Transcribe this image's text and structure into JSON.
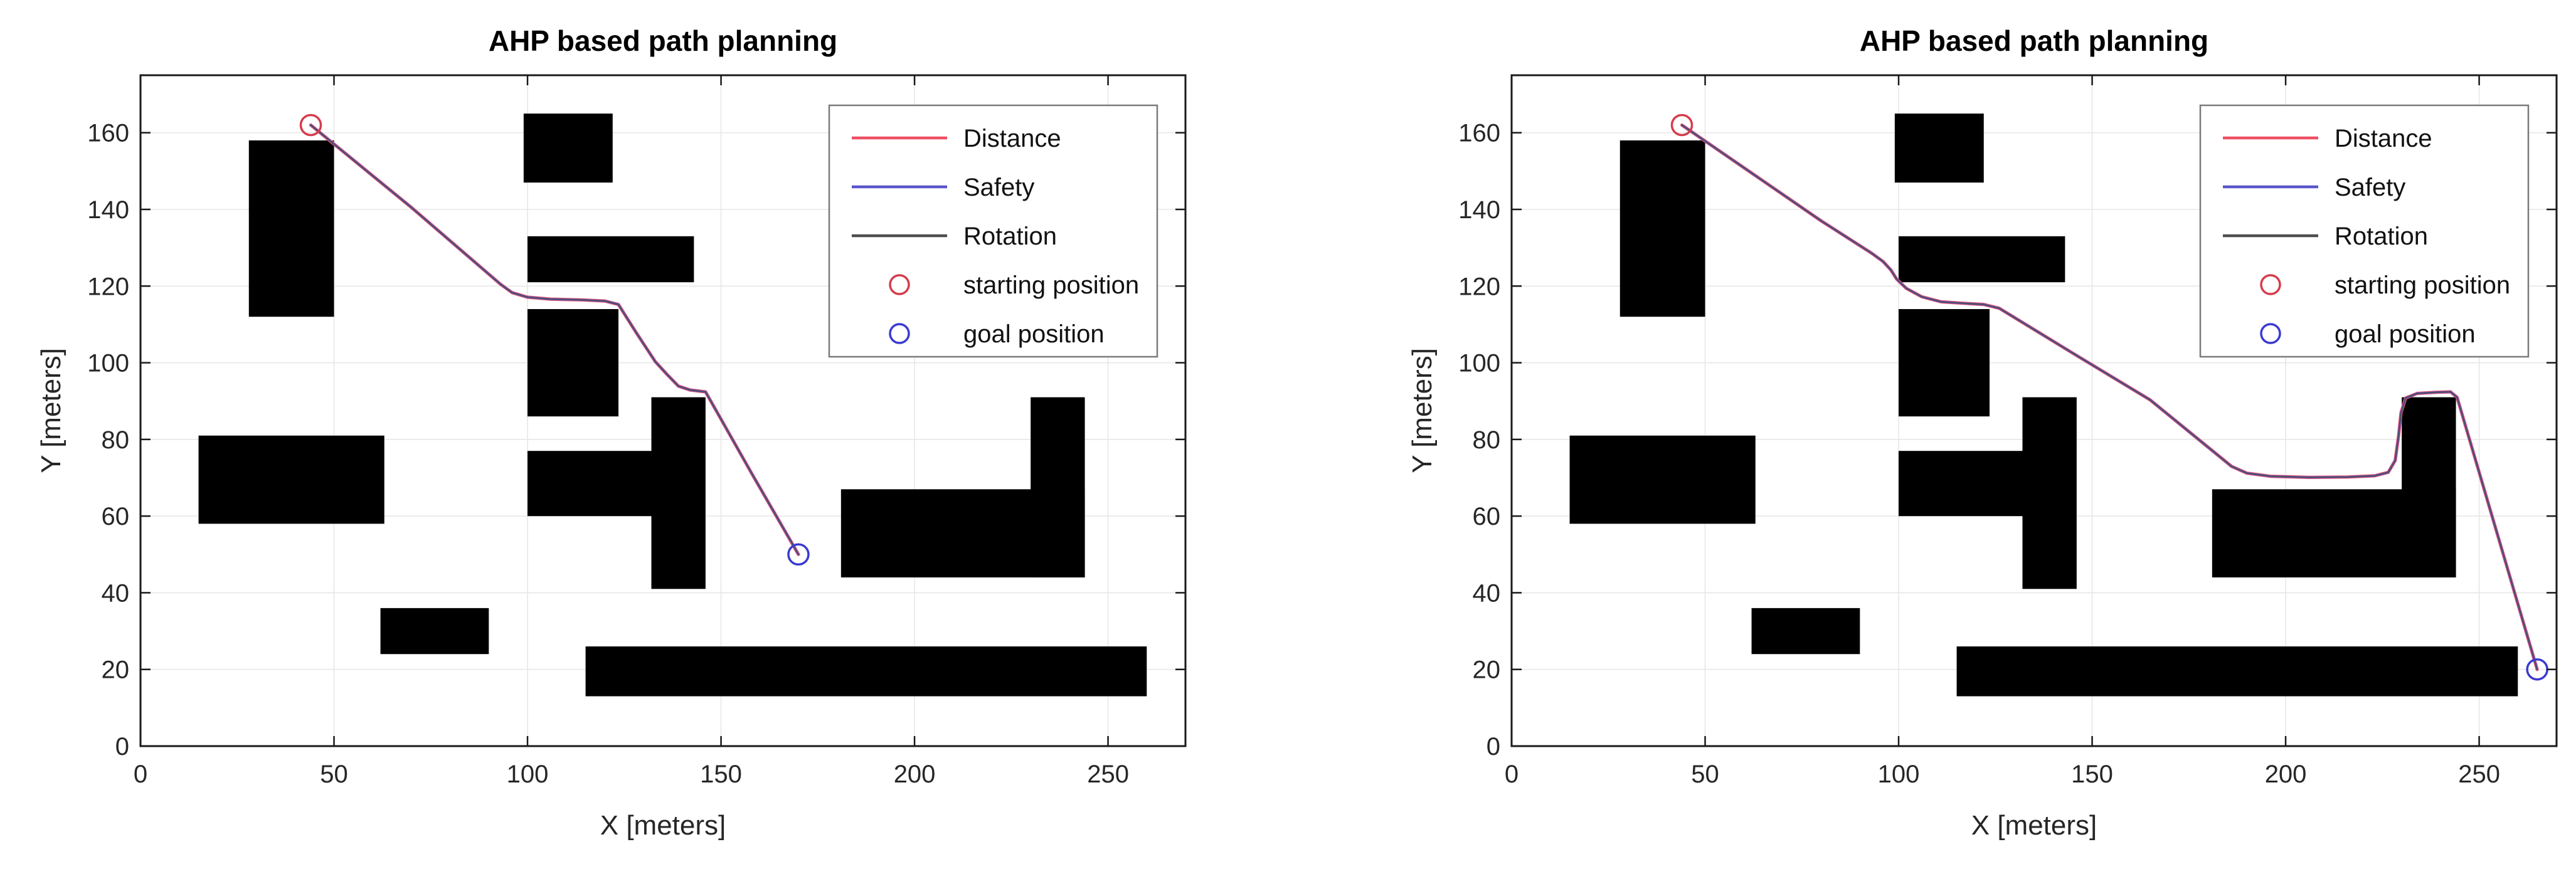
{
  "figure": {
    "background": "#ffffff",
    "colors": {
      "grid": "#e7e7e7",
      "axis": "#1a1a1a",
      "tick_label": "#262626",
      "obstacle": "#000000",
      "legend_border": "#7a7a7a",
      "legend_background": "#ffffff"
    }
  },
  "chart_data": [
    {
      "type": "line",
      "title": "AHP based path planning",
      "xlabel": "X [meters]",
      "ylabel": "Y [meters]",
      "xlim": [
        0,
        270
      ],
      "ylim": [
        0,
        175
      ],
      "xticks": [
        0,
        50,
        100,
        150,
        200,
        250
      ],
      "yticks": [
        0,
        20,
        40,
        60,
        80,
        100,
        120,
        140,
        160
      ],
      "grid": true,
      "legend_position": "upper right",
      "legend": [
        {
          "label": "Distance",
          "marker": "line",
          "color": "#ee4f62"
        },
        {
          "label": "Safety",
          "marker": "line",
          "color": "#5a55cc"
        },
        {
          "label": "Rotation",
          "marker": "line",
          "color": "#4d4d4d"
        },
        {
          "label": "starting position",
          "marker": "circle",
          "color": "#d63c4c"
        },
        {
          "label": "goal position",
          "marker": "circle",
          "color": "#3a3ad2"
        }
      ],
      "obstacles": [
        [
          28,
          112,
          22,
          46
        ],
        [
          99,
          147,
          23,
          18
        ],
        [
          100,
          121,
          43,
          12
        ],
        [
          100,
          86,
          23.5,
          28
        ],
        [
          15,
          58,
          48,
          23
        ],
        [
          100,
          60,
          32,
          17
        ],
        [
          132,
          41,
          14,
          50
        ],
        [
          62,
          24,
          28,
          12
        ],
        [
          115,
          13,
          145,
          13
        ],
        [
          181,
          44,
          63,
          23
        ],
        [
          230,
          44,
          14,
          47
        ]
      ],
      "start": {
        "label": "starting position",
        "x": 44,
        "y": 162,
        "color": "#d63c4c"
      },
      "goal": {
        "label": "goal position",
        "x": 170,
        "y": 50,
        "color": "#3a3ad2"
      },
      "series": [
        {
          "name": "Distance",
          "color": "#ee4f62",
          "points": [
            [
              44,
              162
            ],
            [
              70,
              140.5
            ],
            [
              93,
              120.5
            ],
            [
              96,
              118.3
            ],
            [
              100,
              117.1
            ],
            [
              106,
              116.6
            ],
            [
              114,
              116.4
            ],
            [
              120,
              116.1
            ],
            [
              123.5,
              115.2
            ],
            [
              128,
              108
            ],
            [
              133,
              100.3
            ],
            [
              136,
              97
            ],
            [
              139,
              93.9
            ],
            [
              142,
              92.9
            ],
            [
              146,
              92.4
            ],
            [
              158,
              71
            ],
            [
              170,
              50
            ]
          ]
        },
        {
          "name": "Safety",
          "color": "#5a55cc",
          "points": [
            [
              44,
              162
            ],
            [
              70,
              140.5
            ],
            [
              93,
              120.5
            ],
            [
              96,
              118.3
            ],
            [
              100,
              117.1
            ],
            [
              106,
              116.6
            ],
            [
              114,
              116.4
            ],
            [
              120,
              116.1
            ],
            [
              123.5,
              115.2
            ],
            [
              128,
              108
            ],
            [
              133,
              100.3
            ],
            [
              136,
              97
            ],
            [
              139,
              93.9
            ],
            [
              142,
              92.9
            ],
            [
              146,
              92.4
            ],
            [
              158,
              71
            ],
            [
              170,
              50
            ]
          ]
        },
        {
          "name": "Rotation",
          "color": "#4d4d4d",
          "points": [
            [
              44,
              162
            ],
            [
              70,
              140.5
            ],
            [
              93,
              120.5
            ],
            [
              96,
              118.3
            ],
            [
              100,
              117.1
            ],
            [
              106,
              116.6
            ],
            [
              114,
              116.4
            ],
            [
              120,
              116.1
            ],
            [
              123.5,
              115.2
            ],
            [
              128,
              108
            ],
            [
              133,
              100.3
            ],
            [
              136,
              97
            ],
            [
              139,
              93.9
            ],
            [
              142,
              92.9
            ],
            [
              146,
              92.4
            ],
            [
              158,
              71
            ],
            [
              170,
              50
            ]
          ]
        }
      ]
    },
    {
      "type": "line",
      "title": "AHP based path planning",
      "xlabel": "X [meters]",
      "ylabel": "Y [meters]",
      "xlim": [
        0,
        270
      ],
      "ylim": [
        0,
        175
      ],
      "xticks": [
        0,
        50,
        100,
        150,
        200,
        250
      ],
      "yticks": [
        0,
        20,
        40,
        60,
        80,
        100,
        120,
        140,
        160
      ],
      "grid": true,
      "legend_position": "upper right",
      "legend": [
        {
          "label": "Distance",
          "marker": "line",
          "color": "#ee4f62"
        },
        {
          "label": "Safety",
          "marker": "line",
          "color": "#5a55cc"
        },
        {
          "label": "Rotation",
          "marker": "line",
          "color": "#4d4d4d"
        },
        {
          "label": "starting position",
          "marker": "circle",
          "color": "#d63c4c"
        },
        {
          "label": "goal position",
          "marker": "circle",
          "color": "#3a3ad2"
        }
      ],
      "obstacles": [
        [
          28,
          112,
          22,
          46
        ],
        [
          99,
          147,
          23,
          18
        ],
        [
          100,
          121,
          43,
          12
        ],
        [
          100,
          86,
          23.5,
          28
        ],
        [
          15,
          58,
          48,
          23
        ],
        [
          100,
          60,
          32,
          17
        ],
        [
          132,
          41,
          14,
          50
        ],
        [
          62,
          24,
          28,
          12
        ],
        [
          115,
          13,
          145,
          13
        ],
        [
          181,
          44,
          63,
          23
        ],
        [
          230,
          44,
          14,
          47
        ]
      ],
      "start": {
        "label": "starting position",
        "x": 44,
        "y": 162,
        "color": "#d63c4c"
      },
      "goal": {
        "label": "goal position",
        "x": 265,
        "y": 20,
        "color": "#3a3ad2"
      },
      "series": [
        {
          "name": "Distance",
          "color": "#ee4f62",
          "points": [
            [
              44,
              162
            ],
            [
              80,
              137
            ],
            [
              93,
              128.6
            ],
            [
              96,
              126.4
            ],
            [
              98,
              124.2
            ],
            [
              99.5,
              121.8
            ],
            [
              102,
              119.4
            ],
            [
              106,
              117.2
            ],
            [
              111,
              115.9
            ],
            [
              117,
              115.5
            ],
            [
              122,
              115.2
            ],
            [
              126,
              114.2
            ],
            [
              145,
              102.5
            ],
            [
              165,
              90.3
            ],
            [
              186,
              73
            ],
            [
              190,
              71.2
            ],
            [
              196,
              70.4
            ],
            [
              206,
              70.1
            ],
            [
              216,
              70.2
            ],
            [
              223,
              70.5
            ],
            [
              226.5,
              71.4
            ],
            [
              228.3,
              74.5
            ],
            [
              229.2,
              81
            ],
            [
              229.8,
              87
            ],
            [
              231,
              90.8
            ],
            [
              234,
              92
            ],
            [
              239,
              92.3
            ],
            [
              242.6,
              92.4
            ],
            [
              244.3,
              91
            ],
            [
              265,
              20
            ]
          ]
        },
        {
          "name": "Safety",
          "color": "#5a55cc",
          "points": [
            [
              44,
              162
            ],
            [
              80,
              137
            ],
            [
              93,
              128.6
            ],
            [
              96,
              126.4
            ],
            [
              98,
              124.2
            ],
            [
              99.5,
              121.8
            ],
            [
              102,
              119.4
            ],
            [
              106,
              117.2
            ],
            [
              111,
              115.9
            ],
            [
              117,
              115.5
            ],
            [
              122,
              115.2
            ],
            [
              126,
              114.2
            ],
            [
              145,
              102.5
            ],
            [
              165,
              90.3
            ],
            [
              186,
              73
            ],
            [
              190,
              71.2
            ],
            [
              196,
              70.4
            ],
            [
              206,
              70.1
            ],
            [
              216,
              70.2
            ],
            [
              223,
              70.5
            ],
            [
              226.5,
              71.4
            ],
            [
              228.3,
              74.5
            ],
            [
              229.2,
              81
            ],
            [
              229.8,
              87
            ],
            [
              231,
              90.8
            ],
            [
              234,
              92
            ],
            [
              239,
              92.3
            ],
            [
              242.6,
              92.4
            ],
            [
              244.3,
              91
            ],
            [
              265,
              20
            ]
          ]
        },
        {
          "name": "Rotation",
          "color": "#4d4d4d",
          "points": [
            [
              44,
              162
            ],
            [
              80,
              137
            ],
            [
              93,
              128.6
            ],
            [
              96,
              126.4
            ],
            [
              98,
              124.2
            ],
            [
              99.5,
              121.8
            ],
            [
              102,
              119.4
            ],
            [
              106,
              117.2
            ],
            [
              111,
              115.9
            ],
            [
              117,
              115.5
            ],
            [
              122,
              115.2
            ],
            [
              126,
              114.2
            ],
            [
              145,
              102.5
            ],
            [
              165,
              90.3
            ],
            [
              186,
              73
            ],
            [
              190,
              71.2
            ],
            [
              196,
              70.4
            ],
            [
              206,
              70.1
            ],
            [
              216,
              70.2
            ],
            [
              223,
              70.5
            ],
            [
              226.5,
              71.4
            ],
            [
              228.3,
              74.5
            ],
            [
              229.2,
              81
            ],
            [
              229.8,
              87
            ],
            [
              231,
              90.8
            ],
            [
              234,
              92
            ],
            [
              239,
              92.3
            ],
            [
              242.6,
              92.4
            ],
            [
              244.3,
              91
            ],
            [
              265,
              20
            ]
          ]
        }
      ]
    }
  ]
}
